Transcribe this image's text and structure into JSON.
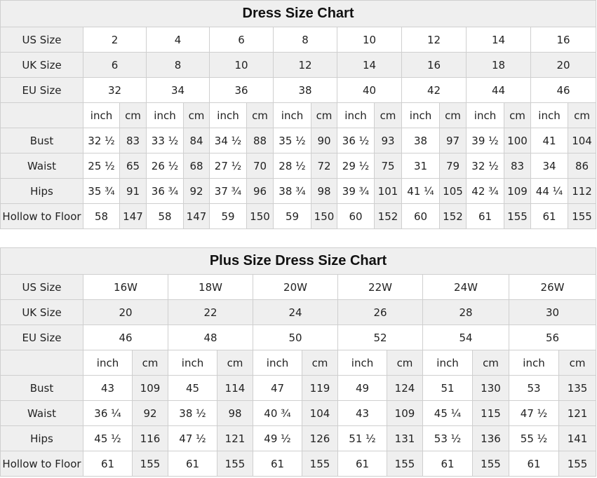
{
  "tables": [
    {
      "title": "Dress Size Chart",
      "us_label": "US Size",
      "uk_label": "UK Size",
      "eu_label": "EU Size",
      "us": [
        "2",
        "4",
        "6",
        "8",
        "10",
        "12",
        "14",
        "16"
      ],
      "uk": [
        "6",
        "8",
        "10",
        "12",
        "14",
        "16",
        "18",
        "20"
      ],
      "eu": [
        "32",
        "34",
        "36",
        "38",
        "40",
        "42",
        "44",
        "46"
      ],
      "unit_inch": "inch",
      "unit_cm": "cm",
      "measures": [
        {
          "label": "Bust",
          "values": [
            [
              "32 ½",
              "83"
            ],
            [
              "33 ½",
              "84"
            ],
            [
              "34 ½",
              "88"
            ],
            [
              "35 ½",
              "90"
            ],
            [
              "36 ½",
              "93"
            ],
            [
              "38",
              "97"
            ],
            [
              "39 ½",
              "100"
            ],
            [
              "41",
              "104"
            ]
          ]
        },
        {
          "label": "Waist",
          "values": [
            [
              "25 ½",
              "65"
            ],
            [
              "26 ½",
              "68"
            ],
            [
              "27 ½",
              "70"
            ],
            [
              "28 ½",
              "72"
            ],
            [
              "29 ½",
              "75"
            ],
            [
              "31",
              "79"
            ],
            [
              "32 ½",
              "83"
            ],
            [
              "34",
              "86"
            ]
          ]
        },
        {
          "label": "Hips",
          "values": [
            [
              "35 ¾",
              "91"
            ],
            [
              "36 ¾",
              "92"
            ],
            [
              "37 ¾",
              "96"
            ],
            [
              "38 ¾",
              "98"
            ],
            [
              "39 ¾",
              "101"
            ],
            [
              "41 ¼",
              "105"
            ],
            [
              "42 ¾",
              "109"
            ],
            [
              "44 ¼",
              "112"
            ]
          ]
        },
        {
          "label": "Hollow to Floor",
          "values": [
            [
              "58",
              "147"
            ],
            [
              "58",
              "147"
            ],
            [
              "59",
              "150"
            ],
            [
              "59",
              "150"
            ],
            [
              "60",
              "152"
            ],
            [
              "60",
              "152"
            ],
            [
              "61",
              "155"
            ],
            [
              "61",
              "155"
            ]
          ]
        }
      ]
    },
    {
      "title": "Plus Size Dress Size Chart",
      "us_label": "US Size",
      "uk_label": "UK Size",
      "eu_label": "EU Size",
      "us": [
        "16W",
        "18W",
        "20W",
        "22W",
        "24W",
        "26W"
      ],
      "uk": [
        "20",
        "22",
        "24",
        "26",
        "28",
        "30"
      ],
      "eu": [
        "46",
        "48",
        "50",
        "52",
        "54",
        "56"
      ],
      "unit_inch": "inch",
      "unit_cm": "cm",
      "measures": [
        {
          "label": "Bust",
          "values": [
            [
              "43",
              "109"
            ],
            [
              "45",
              "114"
            ],
            [
              "47",
              "119"
            ],
            [
              "49",
              "124"
            ],
            [
              "51",
              "130"
            ],
            [
              "53",
              "135"
            ]
          ]
        },
        {
          "label": "Waist",
          "values": [
            [
              "36 ¼",
              "92"
            ],
            [
              "38 ½",
              "98"
            ],
            [
              "40 ¾",
              "104"
            ],
            [
              "43",
              "109"
            ],
            [
              "45 ¼",
              "115"
            ],
            [
              "47 ½",
              "121"
            ]
          ]
        },
        {
          "label": "Hips",
          "values": [
            [
              "45 ½",
              "116"
            ],
            [
              "47 ½",
              "121"
            ],
            [
              "49 ½",
              "126"
            ],
            [
              "51 ½",
              "131"
            ],
            [
              "53 ½",
              "136"
            ],
            [
              "55 ½",
              "141"
            ]
          ]
        },
        {
          "label": "Hollow to Floor",
          "values": [
            [
              "61",
              "155"
            ],
            [
              "61",
              "155"
            ],
            [
              "61",
              "155"
            ],
            [
              "61",
              "155"
            ],
            [
              "61",
              "155"
            ],
            [
              "61",
              "155"
            ]
          ]
        }
      ]
    }
  ]
}
